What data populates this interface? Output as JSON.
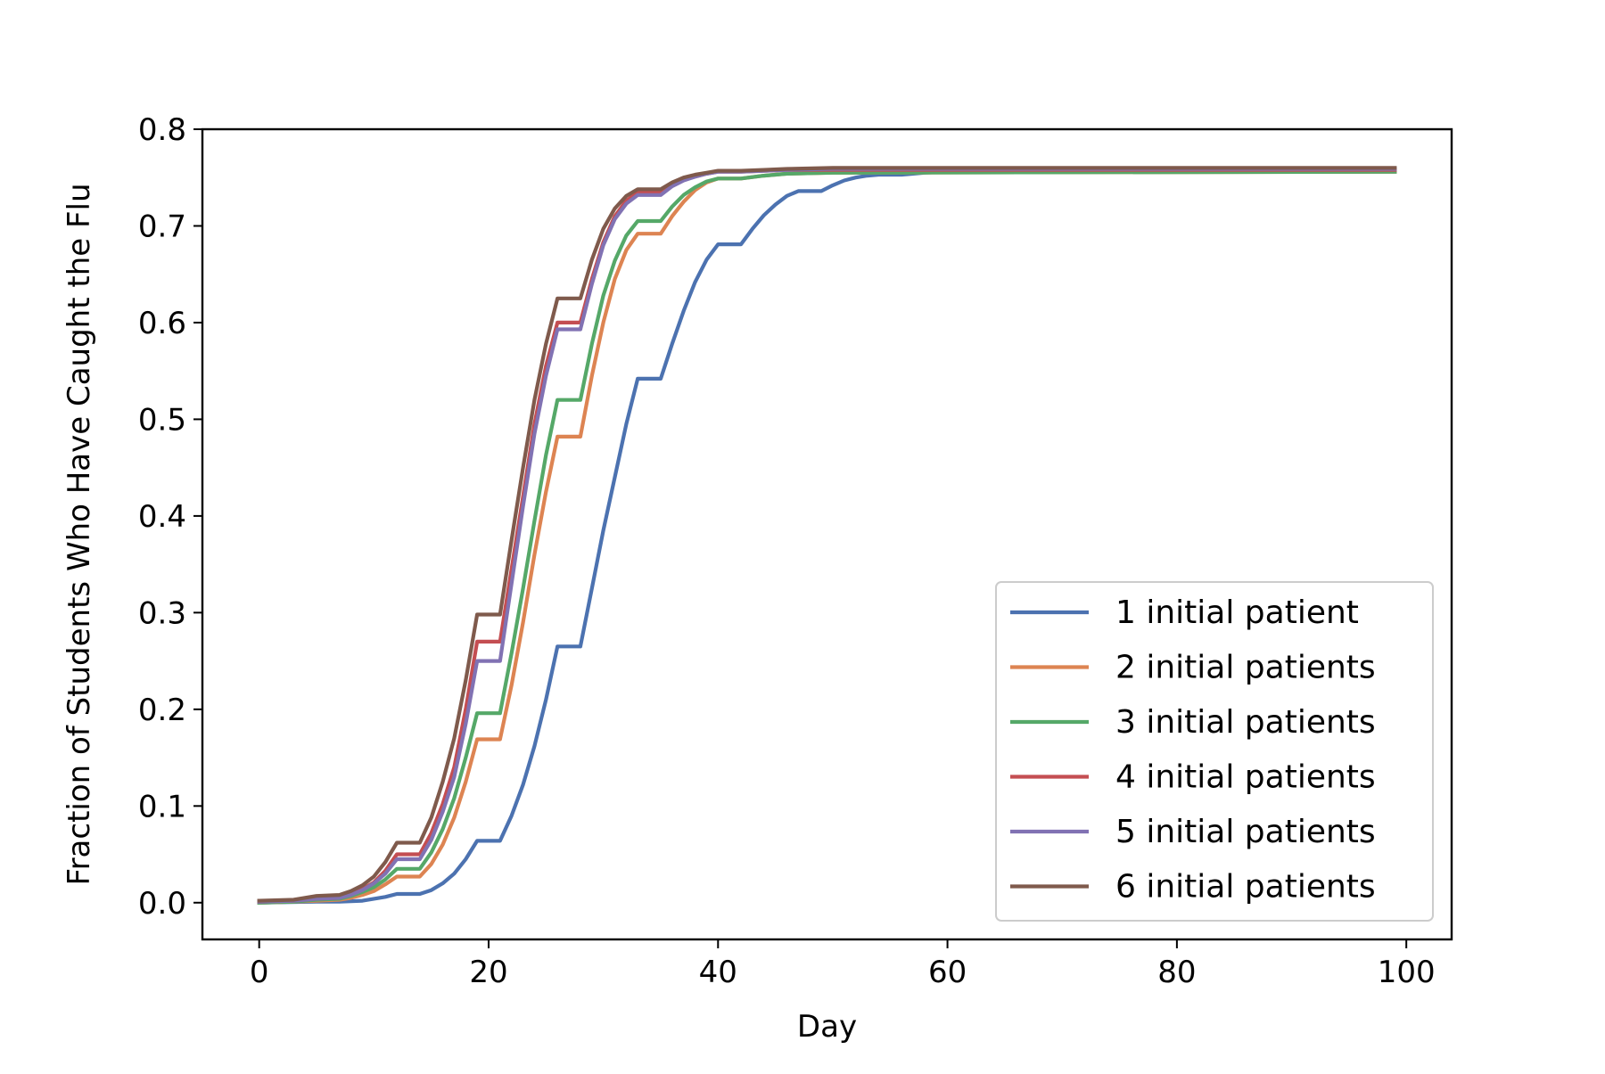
{
  "chart_data": {
    "type": "line",
    "title": "",
    "xlabel": "Day",
    "ylabel": "Fraction of Students Who Have Caught the Flu",
    "xlim": [
      -4.95,
      103.95
    ],
    "ylim": [
      -0.038,
      0.8
    ],
    "x_ticks": [
      0,
      20,
      40,
      60,
      80,
      100
    ],
    "x_tick_labels": [
      "0",
      "20",
      "40",
      "60",
      "80",
      "100"
    ],
    "y_ticks": [
      0.0,
      0.1,
      0.2,
      0.3,
      0.4,
      0.5,
      0.6,
      0.7,
      0.8
    ],
    "y_tick_labels": [
      "0.0",
      "0.1",
      "0.2",
      "0.3",
      "0.4",
      "0.5",
      "0.6",
      "0.7",
      "0.8"
    ],
    "grid": false,
    "legend_position": "lower-right",
    "series": [
      {
        "name": "1 initial patient",
        "color": "#4c72b0",
        "points": [
          [
            0,
            0
          ],
          [
            5,
            0.001
          ],
          [
            7,
            0.001
          ],
          [
            9,
            0.002
          ],
          [
            11,
            0.006
          ],
          [
            12,
            0.009
          ],
          [
            14,
            0.009
          ],
          [
            15,
            0.013
          ],
          [
            16,
            0.02
          ],
          [
            17,
            0.03
          ],
          [
            18,
            0.045
          ],
          [
            19,
            0.064
          ],
          [
            21,
            0.064
          ],
          [
            22,
            0.09
          ],
          [
            23,
            0.122
          ],
          [
            24,
            0.162
          ],
          [
            25,
            0.21
          ],
          [
            26,
            0.265
          ],
          [
            28,
            0.265
          ],
          [
            29,
            0.325
          ],
          [
            30,
            0.385
          ],
          [
            31,
            0.44
          ],
          [
            32,
            0.495
          ],
          [
            33,
            0.542
          ],
          [
            35,
            0.542
          ],
          [
            36,
            0.578
          ],
          [
            37,
            0.612
          ],
          [
            38,
            0.642
          ],
          [
            39,
            0.665
          ],
          [
            40,
            0.681
          ],
          [
            42,
            0.681
          ],
          [
            43,
            0.697
          ],
          [
            44,
            0.711
          ],
          [
            45,
            0.722
          ],
          [
            46,
            0.731
          ],
          [
            47,
            0.736
          ],
          [
            49,
            0.736
          ],
          [
            50,
            0.742
          ],
          [
            51,
            0.747
          ],
          [
            52,
            0.75
          ],
          [
            53,
            0.752
          ],
          [
            54,
            0.753
          ],
          [
            56,
            0.753
          ],
          [
            58,
            0.755
          ],
          [
            60,
            0.756
          ],
          [
            99,
            0.756
          ]
        ]
      },
      {
        "name": "2 initial patients",
        "color": "#dd8452",
        "points": [
          [
            0,
            0
          ],
          [
            3,
            0.001
          ],
          [
            5,
            0.002
          ],
          [
            7,
            0.003
          ],
          [
            8,
            0.005
          ],
          [
            9,
            0.008
          ],
          [
            10,
            0.012
          ],
          [
            11,
            0.019
          ],
          [
            12,
            0.027
          ],
          [
            14,
            0.027
          ],
          [
            15,
            0.04
          ],
          [
            16,
            0.06
          ],
          [
            17,
            0.088
          ],
          [
            18,
            0.125
          ],
          [
            19,
            0.169
          ],
          [
            21,
            0.169
          ],
          [
            22,
            0.225
          ],
          [
            23,
            0.29
          ],
          [
            24,
            0.36
          ],
          [
            25,
            0.425
          ],
          [
            26,
            0.482
          ],
          [
            28,
            0.482
          ],
          [
            29,
            0.545
          ],
          [
            30,
            0.6
          ],
          [
            31,
            0.645
          ],
          [
            32,
            0.675
          ],
          [
            33,
            0.692
          ],
          [
            35,
            0.692
          ],
          [
            36,
            0.71
          ],
          [
            37,
            0.725
          ],
          [
            38,
            0.737
          ],
          [
            39,
            0.745
          ],
          [
            40,
            0.749
          ],
          [
            42,
            0.749
          ],
          [
            44,
            0.752
          ],
          [
            46,
            0.754
          ],
          [
            50,
            0.755
          ],
          [
            99,
            0.756
          ]
        ]
      },
      {
        "name": "3 initial patients",
        "color": "#55a868",
        "points": [
          [
            0,
            0
          ],
          [
            3,
            0.001
          ],
          [
            5,
            0.003
          ],
          [
            7,
            0.004
          ],
          [
            8,
            0.007
          ],
          [
            9,
            0.011
          ],
          [
            10,
            0.016
          ],
          [
            11,
            0.024
          ],
          [
            12,
            0.035
          ],
          [
            14,
            0.035
          ],
          [
            15,
            0.052
          ],
          [
            16,
            0.076
          ],
          [
            17,
            0.108
          ],
          [
            18,
            0.15
          ],
          [
            19,
            0.196
          ],
          [
            21,
            0.196
          ],
          [
            22,
            0.258
          ],
          [
            23,
            0.325
          ],
          [
            24,
            0.395
          ],
          [
            25,
            0.463
          ],
          [
            26,
            0.52
          ],
          [
            28,
            0.52
          ],
          [
            29,
            0.578
          ],
          [
            30,
            0.628
          ],
          [
            31,
            0.664
          ],
          [
            32,
            0.69
          ],
          [
            33,
            0.705
          ],
          [
            35,
            0.705
          ],
          [
            36,
            0.72
          ],
          [
            37,
            0.732
          ],
          [
            38,
            0.74
          ],
          [
            39,
            0.746
          ],
          [
            40,
            0.749
          ],
          [
            42,
            0.749
          ],
          [
            44,
            0.752
          ],
          [
            46,
            0.754
          ],
          [
            50,
            0.755
          ],
          [
            99,
            0.756
          ]
        ]
      },
      {
        "name": "4 initial patients",
        "color": "#c44e52",
        "points": [
          [
            0,
            0.001
          ],
          [
            3,
            0.002
          ],
          [
            5,
            0.004
          ],
          [
            7,
            0.005
          ],
          [
            8,
            0.009
          ],
          [
            9,
            0.014
          ],
          [
            10,
            0.021
          ],
          [
            11,
            0.033
          ],
          [
            12,
            0.05
          ],
          [
            14,
            0.05
          ],
          [
            15,
            0.072
          ],
          [
            16,
            0.102
          ],
          [
            17,
            0.14
          ],
          [
            18,
            0.2
          ],
          [
            19,
            0.27
          ],
          [
            21,
            0.27
          ],
          [
            22,
            0.345
          ],
          [
            23,
            0.42
          ],
          [
            24,
            0.495
          ],
          [
            25,
            0.555
          ],
          [
            26,
            0.6
          ],
          [
            28,
            0.6
          ],
          [
            29,
            0.645
          ],
          [
            30,
            0.683
          ],
          [
            31,
            0.71
          ],
          [
            32,
            0.726
          ],
          [
            33,
            0.735
          ],
          [
            35,
            0.735
          ],
          [
            36,
            0.743
          ],
          [
            37,
            0.748
          ],
          [
            38,
            0.751
          ],
          [
            39,
            0.754
          ],
          [
            40,
            0.756
          ],
          [
            42,
            0.756
          ],
          [
            44,
            0.757
          ],
          [
            46,
            0.758
          ],
          [
            50,
            0.758
          ],
          [
            99,
            0.758
          ]
        ]
      },
      {
        "name": "5 initial patients",
        "color": "#8172b3",
        "points": [
          [
            0,
            0.001
          ],
          [
            3,
            0.002
          ],
          [
            5,
            0.004
          ],
          [
            7,
            0.005
          ],
          [
            8,
            0.008
          ],
          [
            9,
            0.013
          ],
          [
            10,
            0.02
          ],
          [
            11,
            0.03
          ],
          [
            12,
            0.045
          ],
          [
            14,
            0.045
          ],
          [
            15,
            0.065
          ],
          [
            16,
            0.094
          ],
          [
            17,
            0.13
          ],
          [
            18,
            0.185
          ],
          [
            19,
            0.25
          ],
          [
            21,
            0.25
          ],
          [
            22,
            0.33
          ],
          [
            23,
            0.41
          ],
          [
            24,
            0.485
          ],
          [
            25,
            0.545
          ],
          [
            26,
            0.593
          ],
          [
            28,
            0.593
          ],
          [
            29,
            0.64
          ],
          [
            30,
            0.68
          ],
          [
            31,
            0.707
          ],
          [
            32,
            0.723
          ],
          [
            33,
            0.732
          ],
          [
            35,
            0.732
          ],
          [
            36,
            0.741
          ],
          [
            37,
            0.747
          ],
          [
            38,
            0.751
          ],
          [
            39,
            0.754
          ],
          [
            40,
            0.756
          ],
          [
            42,
            0.756
          ],
          [
            44,
            0.757
          ],
          [
            46,
            0.758
          ],
          [
            50,
            0.759
          ],
          [
            99,
            0.759
          ]
        ]
      },
      {
        "name": "6 initial patients",
        "color": "#7f5a4c",
        "points": [
          [
            0,
            0.002
          ],
          [
            3,
            0.003
          ],
          [
            5,
            0.007
          ],
          [
            7,
            0.008
          ],
          [
            8,
            0.012
          ],
          [
            9,
            0.018
          ],
          [
            10,
            0.027
          ],
          [
            11,
            0.042
          ],
          [
            12,
            0.062
          ],
          [
            14,
            0.062
          ],
          [
            15,
            0.088
          ],
          [
            16,
            0.125
          ],
          [
            17,
            0.17
          ],
          [
            18,
            0.23
          ],
          [
            19,
            0.298
          ],
          [
            21,
            0.298
          ],
          [
            22,
            0.375
          ],
          [
            23,
            0.45
          ],
          [
            24,
            0.52
          ],
          [
            25,
            0.578
          ],
          [
            26,
            0.625
          ],
          [
            28,
            0.625
          ],
          [
            29,
            0.665
          ],
          [
            30,
            0.697
          ],
          [
            31,
            0.718
          ],
          [
            32,
            0.731
          ],
          [
            33,
            0.738
          ],
          [
            35,
            0.738
          ],
          [
            36,
            0.745
          ],
          [
            37,
            0.75
          ],
          [
            38,
            0.753
          ],
          [
            39,
            0.755
          ],
          [
            40,
            0.757
          ],
          [
            42,
            0.757
          ],
          [
            44,
            0.758
          ],
          [
            46,
            0.759
          ],
          [
            50,
            0.76
          ],
          [
            99,
            0.76
          ]
        ]
      }
    ]
  }
}
